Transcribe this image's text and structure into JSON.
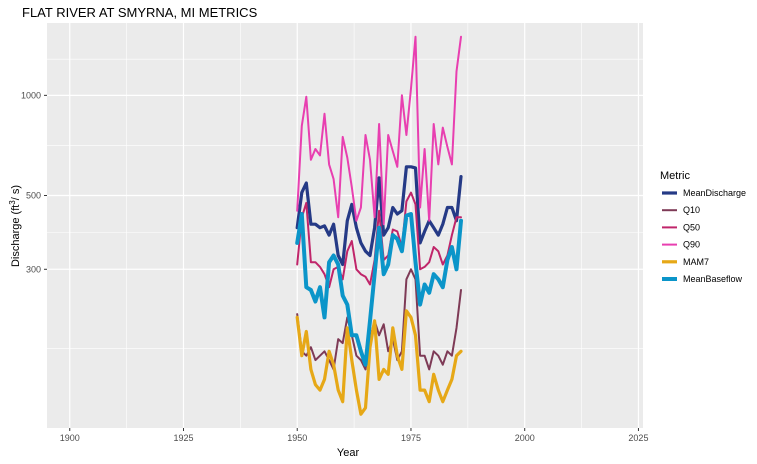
{
  "chart_data": {
    "type": "line",
    "title": "FLAT RIVER AT SMYRNA, MI  METRICS",
    "xlabel": "Year",
    "ylabel": "Discharge (ft³/s)",
    "ylabel_main": "Discharge (ft",
    "ylabel_sup": "3",
    "ylabel_end": "/ s)",
    "y_scale": "log",
    "xlim": [
      1895,
      2026
    ],
    "ylim": [
      100,
      1650
    ],
    "x_ticks": [
      1900,
      1925,
      1950,
      1975,
      2000,
      2025
    ],
    "x_tick_labels": [
      "1900",
      "1925",
      "1950",
      "1975",
      "2000",
      "2025"
    ],
    "y_ticks": [
      300,
      500,
      1000
    ],
    "y_tick_labels": [
      "300",
      "500",
      "1000"
    ],
    "grid": true,
    "legend_title": "Metric",
    "legend_position": "right",
    "x": [
      1950,
      1951,
      1952,
      1953,
      1954,
      1955,
      1956,
      1957,
      1958,
      1959,
      1960,
      1961,
      1962,
      1963,
      1964,
      1965,
      1966,
      1967,
      1968,
      1969,
      1970,
      1971,
      1972,
      1973,
      1974,
      1975,
      1976,
      1977,
      1978,
      1979,
      1980,
      1981,
      1982,
      1983,
      1984,
      1985,
      1986
    ],
    "series": [
      {
        "name": "MeanDischarge",
        "color": "#253a86",
        "width": 3.2,
        "values": [
          400,
          510,
          545,
          410,
          410,
          400,
          405,
          380,
          410,
          330,
          310,
          420,
          470,
          400,
          360,
          340,
          330,
          400,
          565,
          380,
          400,
          460,
          440,
          450,
          610,
          610,
          605,
          360,
          390,
          420,
          400,
          380,
          410,
          460,
          460,
          420,
          570
        ]
      },
      {
        "name": "Q10",
        "color": "#7e3a56",
        "width": 2,
        "values": [
          220,
          170,
          165,
          175,
          160,
          165,
          170,
          160,
          150,
          185,
          180,
          215,
          190,
          165,
          160,
          150,
          185,
          210,
          190,
          205,
          170,
          185,
          160,
          170,
          280,
          300,
          280,
          165,
          165,
          150,
          170,
          165,
          155,
          170,
          165,
          200,
          260
        ]
      },
      {
        "name": "Q50",
        "color": "#c0256a",
        "width": 2,
        "values": [
          310,
          430,
          475,
          315,
          315,
          305,
          290,
          265,
          300,
          305,
          280,
          340,
          365,
          300,
          290,
          285,
          270,
          320,
          450,
          320,
          330,
          395,
          390,
          350,
          480,
          510,
          470,
          300,
          305,
          315,
          350,
          340,
          310,
          330,
          380,
          430,
          430
        ]
      },
      {
        "name": "Q90",
        "color": "#e83fb0",
        "width": 2,
        "values": [
          450,
          810,
          990,
          640,
          690,
          660,
          880,
          620,
          560,
          430,
          750,
          650,
          530,
          420,
          460,
          760,
          640,
          430,
          820,
          410,
          760,
          680,
          610,
          1000,
          760,
          1050,
          1500,
          460,
          690,
          420,
          820,
          620,
          800,
          700,
          620,
          1180,
          1500
        ]
      },
      {
        "name": "MAM7",
        "color": "#e6a817",
        "width": 3.2,
        "values": [
          215,
          165,
          195,
          150,
          135,
          130,
          140,
          170,
          155,
          130,
          120,
          200,
          160,
          130,
          110,
          115,
          175,
          210,
          140,
          150,
          145,
          200,
          165,
          150,
          225,
          215,
          190,
          130,
          130,
          120,
          145,
          130,
          120,
          130,
          140,
          165,
          170
        ]
      },
      {
        "name": "MeanBaseflow",
        "color": "#0b95c9",
        "width": 4,
        "values": [
          360,
          440,
          265,
          260,
          240,
          265,
          215,
          315,
          330,
          310,
          250,
          235,
          190,
          190,
          170,
          155,
          210,
          290,
          400,
          290,
          310,
          380,
          370,
          340,
          435,
          440,
          315,
          235,
          270,
          255,
          290,
          280,
          265,
          320,
          350,
          300,
          420
        ]
      }
    ]
  }
}
